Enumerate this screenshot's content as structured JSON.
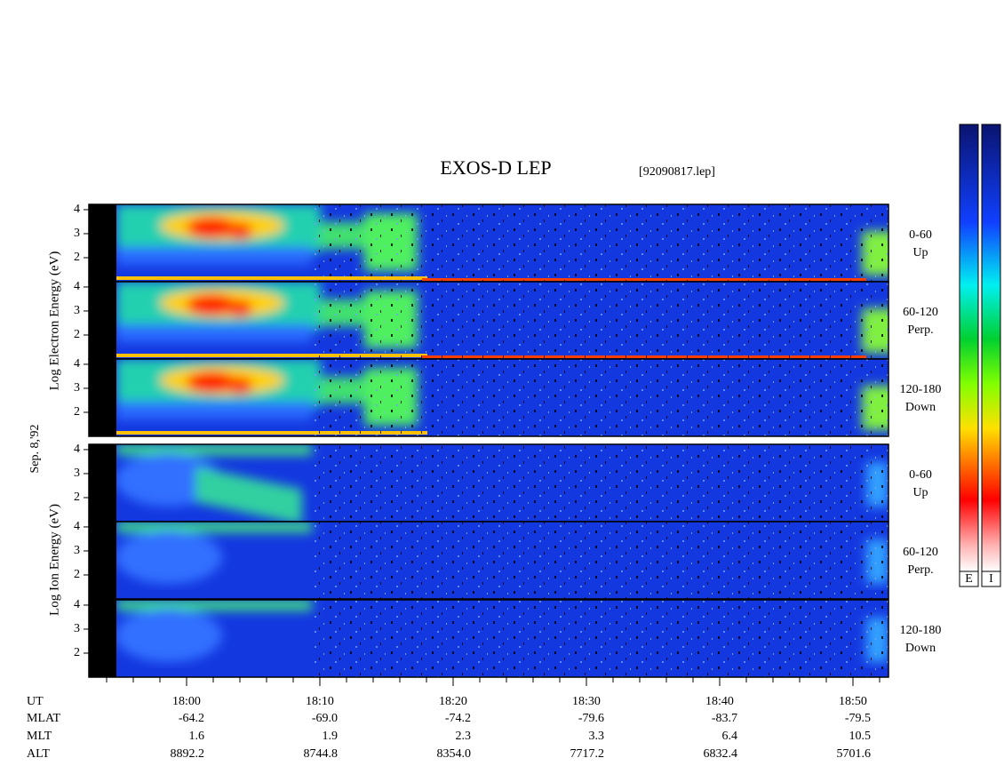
{
  "header": {
    "title": "EXOS-D LEP",
    "file": "[92090817.lep]",
    "date": "Sep. 8,'92"
  },
  "electron": {
    "axis_label": "Log Electron Energy (eV)",
    "ylim": [
      1,
      4.22
    ],
    "yticks": [
      2,
      3,
      4
    ],
    "panels": [
      {
        "angle": "0-60",
        "direction": "Up"
      },
      {
        "angle": "60-120",
        "direction": "Perp."
      },
      {
        "angle": "120-180",
        "direction": "Down"
      }
    ]
  },
  "ion": {
    "axis_label": "Log Ion Energy (eV)",
    "ylim": [
      1,
      4.22
    ],
    "yticks": [
      2,
      3,
      4
    ],
    "panels": [
      {
        "angle": "0-60",
        "direction": "Up"
      },
      {
        "angle": "60-120",
        "direction": "Perp."
      },
      {
        "angle": "120-180",
        "direction": "Down"
      }
    ]
  },
  "colorbars": [
    "E",
    "I"
  ],
  "ephemeris": {
    "labels": [
      "UT",
      "MLAT",
      "MLT",
      "ALT"
    ],
    "columns": [
      [
        "18:00",
        "-64.2",
        "1.6",
        "8892.2"
      ],
      [
        "18:10",
        "-69.0",
        "1.9",
        "8744.8"
      ],
      [
        "18:20",
        "-74.2",
        "2.3",
        "8354.0"
      ],
      [
        "18:30",
        "-79.6",
        "3.3",
        "7717.2"
      ],
      [
        "18:40",
        "-83.7",
        "6.4",
        "6832.4"
      ],
      [
        "18:50",
        "-79.5",
        "10.5",
        "5701.6"
      ]
    ]
  }
}
